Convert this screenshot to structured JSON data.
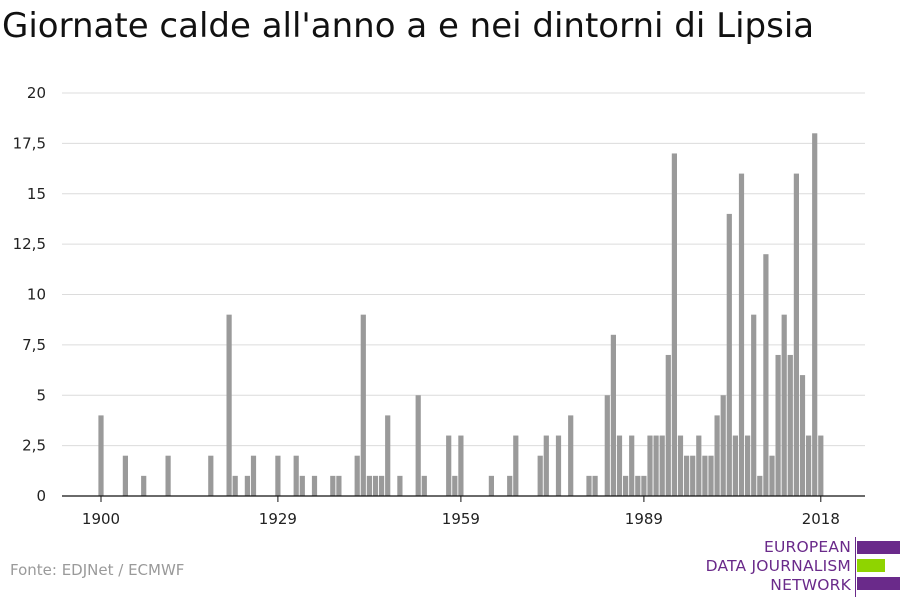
{
  "header": {
    "title": "Giornate calde all'anno a e nei dintorni di Lipsia"
  },
  "footer": {
    "source": "Fonte: EDJNet / ECMWF"
  },
  "logo": {
    "lines": [
      "EUROPEAN",
      "DATA JOURNALISM",
      "NETWORK"
    ],
    "colors": {
      "purple": "#6a2a8a",
      "green": "#8fd400"
    }
  },
  "chart_data": {
    "type": "bar",
    "title": "Giornate calde all'anno a e nei dintorni di Lipsia",
    "xlabel": "",
    "ylabel": "",
    "ylim": [
      0,
      20
    ],
    "yticks": [
      0,
      2.5,
      5,
      7.5,
      10,
      12.5,
      15,
      17.5,
      20
    ],
    "ytick_labels": [
      "0",
      "2,5",
      "5",
      "7,5",
      "10",
      "12,5",
      "15",
      "17,5",
      "20"
    ],
    "xticks": [
      1900,
      1929,
      1959,
      1989,
      2018
    ],
    "xtick_labels": [
      "1900",
      "1929",
      "1959",
      "1989",
      "2018"
    ],
    "grid": true,
    "bar_color": "#9a9a9a",
    "x": [
      1900,
      1904,
      1907,
      1911,
      1918,
      1921,
      1922,
      1924,
      1925,
      1929,
      1932,
      1933,
      1935,
      1938,
      1939,
      1942,
      1943,
      1944,
      1945,
      1946,
      1947,
      1949,
      1952,
      1953,
      1957,
      1958,
      1959,
      1964,
      1967,
      1968,
      1972,
      1973,
      1975,
      1977,
      1980,
      1981,
      1983,
      1984,
      1985,
      1986,
      1987,
      1988,
      1989,
      1990,
      1991,
      1992,
      1993,
      1994,
      1995,
      1996,
      1997,
      1998,
      1999,
      2000,
      2001,
      2002,
      2003,
      2004,
      2005,
      2006,
      2007,
      2008,
      2009,
      2010,
      2011,
      2012,
      2013,
      2014,
      2015,
      2016,
      2017,
      2018
    ],
    "values": [
      4,
      2,
      1,
      2,
      2,
      9,
      1,
      1,
      2,
      2,
      2,
      1,
      1,
      1,
      1,
      2,
      9,
      1,
      1,
      1,
      4,
      1,
      5,
      1,
      3,
      1,
      3,
      1,
      1,
      3,
      2,
      3,
      3,
      4,
      1,
      1,
      5,
      8,
      3,
      1,
      3,
      1,
      1,
      3,
      3,
      3,
      7,
      17,
      3,
      2,
      2,
      3,
      2,
      2,
      4,
      5,
      14,
      3,
      16,
      3,
      9,
      1,
      12,
      2,
      7,
      9,
      7,
      16,
      6,
      3,
      18,
      3
    ]
  }
}
